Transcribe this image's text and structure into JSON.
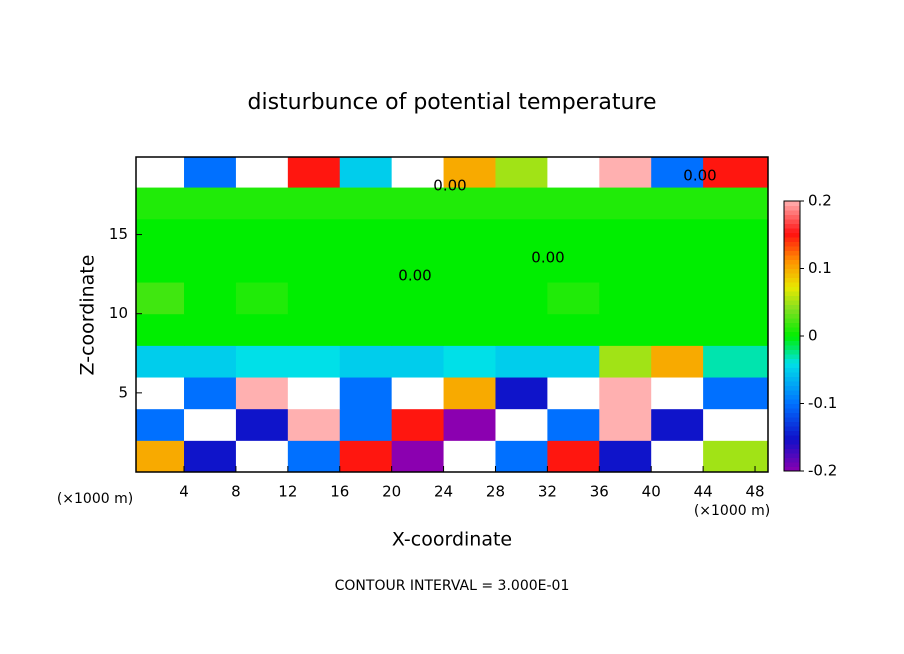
{
  "chart_data": {
    "type": "heatmap",
    "title": "disturbunce of potential temperature",
    "x_label": "X-coordinate",
    "y_label": "Z-coordinate",
    "x_unit": "(×1000 m)",
    "y_unit": "(×1000 m)",
    "annotation": "CONTOUR INTERVAL = 3.000E-01",
    "contour_labels": [
      "0.00",
      "0.00",
      "0.00",
      "0.00"
    ],
    "xlim": [
      0.3,
      49
    ],
    "ylim": [
      0,
      19.9
    ],
    "xticks": [
      4,
      8,
      12,
      16,
      20,
      24,
      28,
      32,
      36,
      40,
      44,
      48
    ],
    "yticks": [
      5,
      10,
      15
    ],
    "zlim": [
      -0.2,
      0.2
    ],
    "zticks": [
      -0.2,
      -0.1,
      0,
      0.1,
      0.2
    ],
    "x": [
      2,
      6,
      10,
      14,
      18,
      22,
      26,
      30,
      34,
      38,
      42,
      46
    ],
    "y": [
      1,
      3,
      5,
      7,
      9,
      11,
      13,
      15,
      17,
      19
    ],
    "z": [
      [
        0.1,
        -0.15,
        0.25,
        -0.1,
        0.15,
        -0.2,
        0.25,
        -0.1,
        0.15,
        -0.15,
        0.25,
        0.05
      ],
      [
        -0.1,
        0.25,
        -0.15,
        0.2,
        -0.1,
        0.15,
        -0.2,
        0.25,
        -0.1,
        0.2,
        -0.15,
        0.25
      ],
      [
        0.25,
        -0.1,
        0.2,
        0.25,
        -0.1,
        0.25,
        0.1,
        -0.15,
        0.25,
        0.2,
        0.25,
        -0.1
      ],
      [
        -0.05,
        -0.05,
        -0.04,
        -0.04,
        -0.05,
        -0.05,
        -0.04,
        -0.05,
        -0.05,
        0.05,
        0.1,
        -0.03
      ],
      [
        0,
        0,
        0,
        0,
        0,
        0,
        0,
        0,
        0,
        0,
        0,
        0
      ],
      [
        0.02,
        0,
        0.01,
        0,
        0,
        0,
        0,
        0,
        0.01,
        0,
        0,
        0
      ],
      [
        0,
        0,
        0,
        0,
        0,
        0,
        0,
        0,
        0,
        0,
        0,
        0
      ],
      [
        0,
        0,
        0,
        0,
        0,
        0,
        0,
        0,
        0,
        0,
        0,
        0
      ],
      [
        0.01,
        0.01,
        0.01,
        0.01,
        0.01,
        0.01,
        0.01,
        0.01,
        0.01,
        0.01,
        0.01,
        0.01
      ],
      [
        0.25,
        -0.1,
        0.25,
        0.15,
        -0.05,
        0.25,
        0.1,
        0.05,
        0.25,
        0.2,
        -0.1,
        0.15
      ]
    ]
  }
}
